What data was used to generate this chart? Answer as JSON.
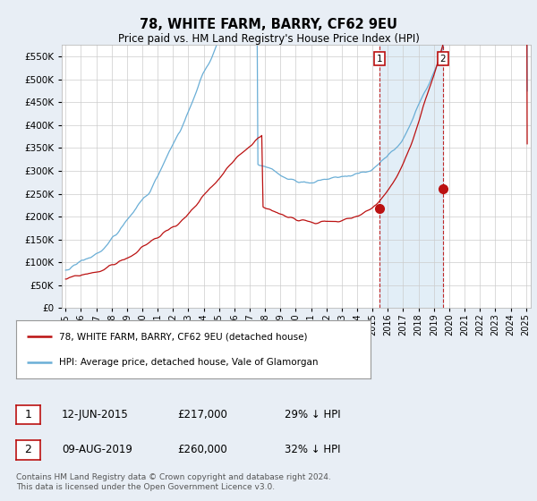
{
  "title": "78, WHITE FARM, BARRY, CF62 9EU",
  "subtitle": "Price paid vs. HM Land Registry's House Price Index (HPI)",
  "ytick_values": [
    0,
    50000,
    100000,
    150000,
    200000,
    250000,
    300000,
    350000,
    400000,
    450000,
    500000,
    550000
  ],
  "ylim": [
    0,
    575000
  ],
  "xlim_start": 1994.75,
  "xlim_end": 2025.3,
  "hpi_color": "#6aaed6",
  "hpi_fill_color": "#d6e8f5",
  "price_color": "#bb1111",
  "marker1_date": 2015.44,
  "marker1_price": 217000,
  "marker2_date": 2019.58,
  "marker2_price": 260000,
  "legend_label1": "78, WHITE FARM, BARRY, CF62 9EU (detached house)",
  "legend_label2": "HPI: Average price, detached house, Vale of Glamorgan",
  "footer": "Contains HM Land Registry data © Crown copyright and database right 2024.\nThis data is licensed under the Open Government Licence v3.0.",
  "background_color": "#e8eef5",
  "plot_bg_color": "#ffffff"
}
